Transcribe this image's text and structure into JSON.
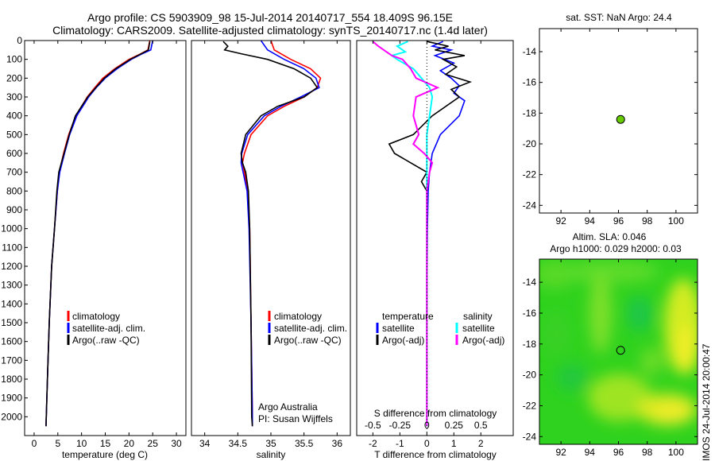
{
  "header": {
    "line1": "Argo profile: CS 5903909_98 15-Jul-2014 20140717_554 18.409S 96.15E",
    "line2": "Climatology: CARS2009. Satellite-adjusted climatology: synTS_20140717.nc (1.4d later)"
  },
  "colors": {
    "climatology": "#ff0000",
    "satellite": "#0000ff",
    "argo": "#000000",
    "salinity_satellite": "#00ffff",
    "salinity_argo": "#ff00ff",
    "marker": "#66cc00"
  },
  "chart_data": [
    {
      "id": "temperature",
      "type": "line",
      "xlabel": "temperature (deg C)",
      "ylabel": "",
      "xlim": [
        -2,
        32
      ],
      "ylim": [
        2100,
        0
      ],
      "xticks": [
        "0",
        "5",
        "10",
        "15",
        "20",
        "25",
        "30"
      ],
      "xtick_values": [
        0,
        5,
        10,
        15,
        20,
        25,
        30
      ],
      "yticks": [
        "0",
        "100",
        "200",
        "300",
        "400",
        "500",
        "600",
        "700",
        "800",
        "900",
        "1000",
        "1100",
        "1200",
        "1300",
        "1400",
        "1500",
        "1600",
        "1700",
        "1800",
        "1900",
        "2000"
      ],
      "ytick_values": [
        0,
        100,
        200,
        300,
        400,
        500,
        600,
        700,
        800,
        900,
        1000,
        1100,
        1200,
        1300,
        1400,
        1500,
        1600,
        1700,
        1800,
        1900,
        2000
      ],
      "legend": [
        "climatology",
        "satellite-adj. clim.",
        "Argo(..raw -QC)"
      ],
      "series": [
        {
          "name": "climatology",
          "depth": [
            0,
            50,
            70,
            100,
            150,
            200,
            250,
            300,
            400,
            500,
            600,
            700,
            800,
            1000,
            1200,
            1500,
            1800,
            2050
          ],
          "values": [
            24.4,
            24.0,
            22.5,
            20.0,
            17.0,
            14.5,
            12.8,
            11.2,
            8.8,
            7.3,
            6.2,
            5.3,
            4.9,
            4.3,
            3.7,
            3.2,
            2.8,
            2.5
          ]
        },
        {
          "name": "satellite-adj. clim.",
          "depth": [
            0,
            50,
            70,
            100,
            150,
            200,
            250,
            300,
            400,
            500,
            600,
            700,
            800,
            1000,
            1200,
            1500,
            1800,
            2050
          ],
          "values": [
            25.0,
            24.6,
            22.8,
            20.5,
            17.5,
            15.0,
            13.1,
            11.5,
            9.0,
            7.5,
            6.4,
            5.4,
            4.9,
            4.3,
            3.7,
            3.2,
            2.8,
            2.5
          ]
        },
        {
          "name": "Argo(..raw -QC)",
          "depth": [
            5,
            50,
            70,
            100,
            150,
            200,
            250,
            300,
            400,
            500,
            600,
            700,
            800,
            1000,
            1200,
            1500,
            1800,
            2050
          ],
          "values": [
            24.4,
            24.1,
            22.6,
            20.3,
            17.2,
            14.8,
            13.0,
            11.3,
            8.7,
            7.4,
            6.3,
            5.2,
            4.8,
            4.3,
            3.7,
            3.2,
            2.8,
            2.5
          ]
        }
      ]
    },
    {
      "id": "salinity",
      "type": "line",
      "xlabel": "salinity",
      "xlim": [
        33.8,
        36.2
      ],
      "ylim": [
        2100,
        0
      ],
      "xticks": [
        "34",
        "34.5",
        "35",
        "35.5",
        "36"
      ],
      "xtick_values": [
        34,
        34.5,
        35,
        35.5,
        36
      ],
      "legend": [
        "climatology",
        "satellite-adj. clim.",
        "Argo(..raw -QC)"
      ],
      "annotation": [
        "Argo Australia",
        "PI: Susan Wijffels"
      ],
      "series": [
        {
          "name": "climatology",
          "depth": [
            0,
            50,
            100,
            150,
            200,
            250,
            300,
            350,
            400,
            500,
            600,
            650,
            700,
            800,
            1000,
            1500,
            2000,
            2050
          ],
          "values": [
            35.0,
            35.05,
            35.3,
            35.6,
            35.75,
            35.7,
            35.5,
            35.2,
            34.95,
            34.7,
            34.6,
            34.57,
            34.6,
            34.65,
            34.68,
            34.7,
            34.72,
            34.72
          ]
        },
        {
          "name": "satellite-adj. clim.",
          "depth": [
            0,
            50,
            100,
            150,
            200,
            250,
            300,
            350,
            400,
            500,
            600,
            650,
            700,
            800,
            1000,
            1500,
            2000,
            2050
          ],
          "values": [
            34.85,
            34.95,
            35.2,
            35.5,
            35.68,
            35.73,
            35.45,
            35.15,
            34.9,
            34.65,
            34.56,
            34.55,
            34.58,
            34.64,
            34.67,
            34.7,
            34.72,
            34.72
          ]
        },
        {
          "name": "Argo(..raw -QC)",
          "depth": [
            5,
            30,
            50,
            70,
            100,
            150,
            200,
            250,
            300,
            350,
            400,
            500,
            600,
            650,
            700,
            800,
            1000,
            1500,
            2000,
            2050
          ],
          "values": [
            34.28,
            34.35,
            34.3,
            34.55,
            34.95,
            35.35,
            35.6,
            35.7,
            35.5,
            35.1,
            34.85,
            34.62,
            34.55,
            34.57,
            34.62,
            34.66,
            34.68,
            34.7,
            34.71,
            34.72
          ]
        }
      ]
    },
    {
      "id": "difference",
      "type": "line",
      "xlabel": "T difference from climatology",
      "xlabel_top": "S difference from climatology",
      "xlim": [
        -2.6,
        3.2
      ],
      "ylim": [
        2100,
        0
      ],
      "xticks": [
        "-2",
        "-1",
        "0",
        "1",
        "2"
      ],
      "xtick_values": [
        -2,
        -1,
        0,
        1,
        2
      ],
      "sticks": [
        "-0.5",
        "-0.25",
        "0",
        "0.25",
        "0.5"
      ],
      "stick_values": [
        -2,
        -1,
        0,
        1,
        2
      ],
      "legend_temperature_title": "temperature",
      "legend_salinity_title": "salinity",
      "legend_temperature": [
        "satellite",
        "Argo(-adj)"
      ],
      "legend_salinity": [
        "satellite",
        "Argo(-adj)"
      ],
      "series": [
        {
          "name": "T satellite",
          "depth": [
            5,
            30,
            50,
            80,
            120,
            160,
            200,
            240,
            280,
            320,
            400,
            500,
            600,
            700,
            800,
            1000,
            1500,
            2050
          ],
          "values": [
            0.6,
            0.2,
            0.9,
            0.3,
            1.0,
            0.5,
            0.9,
            1.2,
            1.0,
            1.4,
            1.2,
            0.5,
            0.2,
            0.1,
            0.05,
            0.02,
            0.0,
            0.0
          ]
        },
        {
          "name": "T Argo(-adj)",
          "depth": [
            5,
            30,
            50,
            80,
            100,
            140,
            180,
            220,
            260,
            300,
            400,
            500,
            550,
            600,
            650,
            700,
            750,
            800,
            1000,
            1500,
            2050
          ],
          "values": [
            0.0,
            0.8,
            0.3,
            1.4,
            0.6,
            1.1,
            0.7,
            1.6,
            0.9,
            1.2,
            0.2,
            -0.5,
            -1.4,
            -1.2,
            -0.6,
            0.0,
            -0.2,
            0.0,
            0.0,
            0.0,
            0.0
          ]
        },
        {
          "name": "S satellite",
          "depth": [
            5,
            30,
            60,
            80,
            100,
            150,
            200,
            250,
            300,
            400,
            500,
            600,
            700,
            800,
            1000,
            1500,
            2050
          ],
          "values": [
            -0.7,
            -1.1,
            -0.8,
            -1.3,
            -1.1,
            -0.5,
            -0.2,
            0.1,
            0.2,
            0.1,
            0.0,
            0.0,
            0.0,
            0.0,
            0.0,
            0.0,
            0.0
          ]
        },
        {
          "name": "S Argo(-adj)",
          "depth": [
            5,
            30,
            60,
            80,
            100,
            150,
            200,
            250,
            300,
            400,
            500,
            550,
            600,
            650,
            700,
            800,
            1000,
            1500,
            2050
          ],
          "values": [
            -2.0,
            -1.8,
            -1.5,
            -1.3,
            -0.9,
            -0.6,
            -0.4,
            0.4,
            -0.4,
            -0.5,
            -0.3,
            -0.5,
            -0.1,
            0.2,
            0.1,
            0.0,
            0.0,
            0.0,
            0.0
          ]
        }
      ]
    },
    {
      "id": "sst-map",
      "type": "scatter",
      "title": "sat. SST: NaN Argo: 24.4",
      "xlim": [
        90.5,
        101.5
      ],
      "ylim": [
        -24.5,
        -12.5
      ],
      "xticks": [
        "92",
        "94",
        "96",
        "98",
        "100"
      ],
      "xtick_values": [
        92,
        94,
        96,
        98,
        100
      ],
      "yticks": [
        "-14",
        "-16",
        "-18",
        "-20",
        "-22",
        "-24"
      ],
      "ytick_values": [
        -14,
        -16,
        -18,
        -20,
        -22,
        -24
      ],
      "points": [
        {
          "lon": 96.15,
          "lat": -18.409
        }
      ]
    },
    {
      "id": "sla-map",
      "type": "heatmap",
      "title_line1": "Altim. SLA: 0.046",
      "title_line2": "Argo h1000: 0.029 h2000: 0.03",
      "xlim": [
        90.5,
        101.5
      ],
      "ylim": [
        -24.5,
        -12.5
      ],
      "xticks": [
        "92",
        "94",
        "96",
        "98",
        "100"
      ],
      "xtick_values": [
        92,
        94,
        96,
        98,
        100
      ],
      "yticks": [
        "-14",
        "-16",
        "-18",
        "-20",
        "-22",
        "-24"
      ],
      "ytick_values": [
        -14,
        -16,
        -18,
        -20,
        -22,
        -24
      ],
      "points": [
        {
          "lon": 96.15,
          "lat": -18.409
        }
      ],
      "side_label": "IMOS 24-Jul-2014 20:00:47"
    }
  ]
}
